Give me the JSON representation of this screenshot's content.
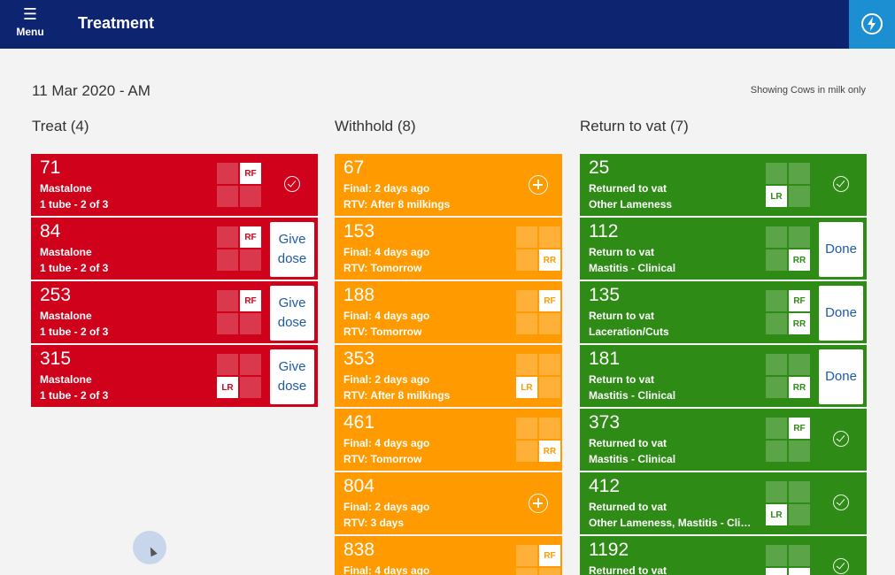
{
  "header": {
    "menu_icon": "hamburger-icon",
    "menu_label": "Menu",
    "title": "Treatment",
    "action_icon": "bolt-icon",
    "colors": {
      "bar": "#0d2470",
      "action": "#1b8fd1"
    }
  },
  "page": {
    "date": "11 Mar 2020 - AM",
    "filter_note": "Showing Cows in milk only"
  },
  "colors": {
    "treat": "#d0021b",
    "withhold": "#ff9a00",
    "return": "#2e8b15"
  },
  "columns": {
    "treat": {
      "title": "Treat (4)",
      "cards": [
        {
          "number": "71",
          "line1": "Mastalone",
          "line2": "1 tube - 2 of 3",
          "q": [
            "",
            "RF",
            "",
            ""
          ],
          "action": "check"
        },
        {
          "number": "84",
          "line1": "Mastalone",
          "line2": "1 tube - 2 of 3",
          "q": [
            "",
            "RF",
            "",
            ""
          ],
          "action": "button",
          "button_label": "Give dose"
        },
        {
          "number": "253",
          "line1": "Mastalone",
          "line2": "1 tube - 2 of 3",
          "q": [
            "",
            "RF",
            "",
            ""
          ],
          "action": "button",
          "button_label": "Give dose"
        },
        {
          "number": "315",
          "line1": "Mastalone",
          "line2": "1 tube - 2 of 3",
          "q": [
            "",
            "",
            "LR",
            ""
          ],
          "action": "button",
          "button_label": "Give dose"
        }
      ]
    },
    "withhold": {
      "title": "Withhold (8)",
      "cards": [
        {
          "number": "67",
          "line1": "Final: 2 days ago",
          "line2": "RTV: After 8 milkings",
          "q": null,
          "action": "plus"
        },
        {
          "number": "153",
          "line1": "Final: 4 days ago",
          "line2": "RTV: Tomorrow",
          "q": [
            "",
            "",
            "",
            "RR"
          ],
          "action": "none"
        },
        {
          "number": "188",
          "line1": "Final: 4 days ago",
          "line2": "RTV: Tomorrow",
          "q": [
            "",
            "RF",
            "",
            ""
          ],
          "action": "none"
        },
        {
          "number": "353",
          "line1": "Final: 2 days ago",
          "line2": "RTV: After 8 milkings",
          "q": [
            "",
            "",
            "LR",
            ""
          ],
          "action": "none"
        },
        {
          "number": "461",
          "line1": "Final: 4 days ago",
          "line2": "RTV: Tomorrow",
          "q": [
            "",
            "",
            "",
            "RR"
          ],
          "action": "none"
        },
        {
          "number": "804",
          "line1": "Final: 2 days ago",
          "line2": "RTV: 3 days",
          "q": null,
          "action": "plus"
        },
        {
          "number": "838",
          "line1": "Final: 4 days ago",
          "line2": "",
          "q": [
            "",
            "RF",
            "",
            ""
          ],
          "action": "none"
        }
      ]
    },
    "return": {
      "title": "Return to vat (7)",
      "cards": [
        {
          "number": "25",
          "line1": "Returned to vat",
          "line2": "Other Lameness",
          "q": [
            "",
            "",
            "LR",
            ""
          ],
          "action": "check"
        },
        {
          "number": "112",
          "line1": "Return to vat",
          "line2": "Mastitis - Clinical",
          "q": [
            "",
            "",
            "",
            "RR"
          ],
          "action": "button",
          "button_label": "Done"
        },
        {
          "number": "135",
          "line1": "Return to vat",
          "line2": "Laceration/Cuts",
          "q": [
            "",
            "RF",
            "",
            "RR"
          ],
          "action": "button",
          "button_label": "Done"
        },
        {
          "number": "181",
          "line1": "Return to vat",
          "line2": "Mastitis - Clinical",
          "q": [
            "",
            "",
            "",
            "RR"
          ],
          "action": "button",
          "button_label": "Done"
        },
        {
          "number": "373",
          "line1": "Returned to vat",
          "line2": "Mastitis - Clinical",
          "q": [
            "",
            "RF",
            "",
            ""
          ],
          "action": "check"
        },
        {
          "number": "412",
          "line1": "Returned to vat",
          "line2": "Other Lameness, Mastitis - Cli…",
          "q": [
            "",
            "",
            "LR",
            ""
          ],
          "action": "check"
        },
        {
          "number": "1192",
          "line1": "Returned to vat",
          "line2": "",
          "q": [
            "",
            "",
            "LR",
            "RR"
          ],
          "action": "check"
        }
      ]
    }
  }
}
